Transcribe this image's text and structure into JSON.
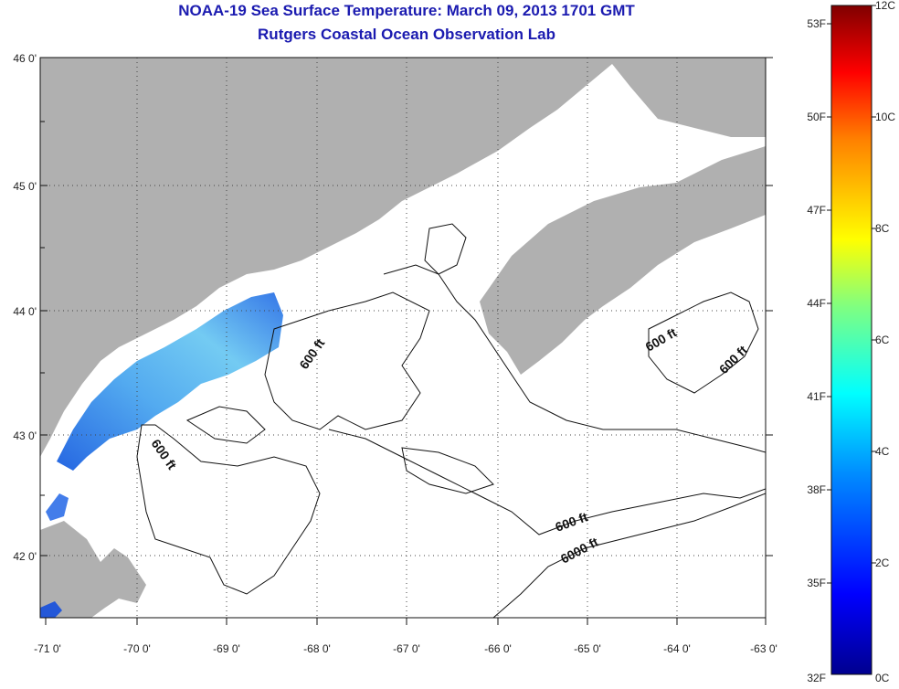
{
  "title": "NOAA-19 Sea Surface Temperature:  March 09, 2013 1701 GMT",
  "subtitle": "Rutgers Coastal Ocean Observation Lab",
  "lat_labels": [
    "46 0'",
    "45 0'",
    "44 0'",
    "43 0'",
    "42 0'"
  ],
  "lon_labels": [
    "-71 0'",
    "-70 0'",
    "-69 0'",
    "-68 0'",
    "-67 0'",
    "-66 0'",
    "-65 0'",
    "-64 0'",
    "-63 0'"
  ],
  "contour_labels": [
    "600 ft",
    "600 ft",
    "600 ft",
    "600 ft",
    "600 ft",
    "6000 ft"
  ],
  "colorbar": {
    "fahrenheit": [
      "53F",
      "50F",
      "47F",
      "44F",
      "41F",
      "38F",
      "35F",
      "32F"
    ],
    "celsius": [
      "12C",
      "10C",
      "8C",
      "6C",
      "4C",
      "2C",
      "0C"
    ]
  },
  "colors": {
    "land": "#b0b0b0",
    "title": "#1b1bb0",
    "sst_cold": "#1a4fd8",
    "sst_warm": "#4fb7f0"
  }
}
